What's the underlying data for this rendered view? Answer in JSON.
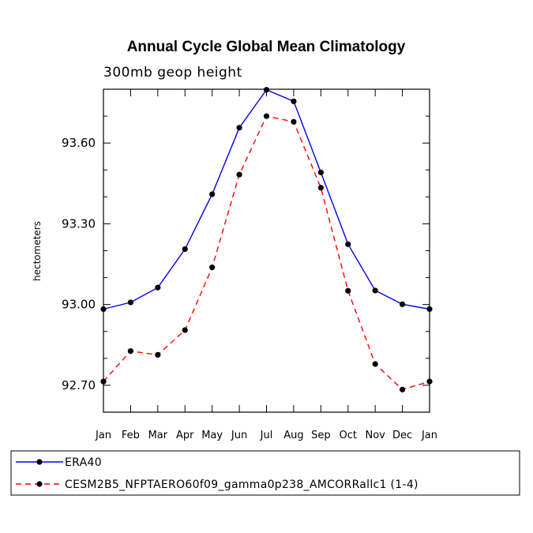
{
  "chart_data": {
    "type": "line",
    "title": "Annual Cycle Global Mean Climatology",
    "subtitle": "300mb geop height",
    "xlabel": "",
    "ylabel": "hectometers",
    "categories": [
      "Jan",
      "Feb",
      "Mar",
      "Apr",
      "May",
      "Jun",
      "Jul",
      "Aug",
      "Sep",
      "Oct",
      "Nov",
      "Dec",
      "Jan"
    ],
    "ylim": [
      92.6,
      93.8
    ],
    "yticks": [
      92.7,
      93.0,
      93.3,
      93.6
    ],
    "ytick_labels": [
      "92.70",
      "93.00",
      "93.30",
      "93.60"
    ],
    "series": [
      {
        "name": "ERA40",
        "color": "#0000ff",
        "style": "solid",
        "values": [
          92.983,
          93.008,
          93.063,
          93.206,
          93.41,
          93.657,
          93.798,
          93.755,
          93.491,
          93.224,
          93.052,
          93.001,
          92.983
        ]
      },
      {
        "name": "CESM2B5_NFPTAERO60f09_gamma0p238_AMCORRallc1 (1-4)",
        "color": "#ff0000",
        "style": "dashed",
        "values": [
          92.714,
          92.827,
          92.813,
          92.905,
          93.138,
          93.483,
          93.7,
          93.679,
          93.434,
          93.051,
          92.779,
          92.684,
          92.714
        ]
      }
    ],
    "legend_position": "bottom"
  }
}
